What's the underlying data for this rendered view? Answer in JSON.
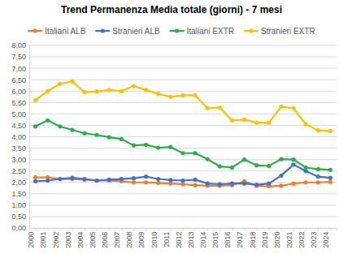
{
  "chart_data": {
    "type": "line",
    "title": "Trend Permanenza Media totale (giorni) - 7 mesi",
    "categories": [
      "2000",
      "2001",
      "2002",
      "2003",
      "2004",
      "2005",
      "2006",
      "2007",
      "2008",
      "2009",
      "2010",
      "2011",
      "2012",
      "2013",
      "2014",
      "2015",
      "2016",
      "2017",
      "2018",
      "2019",
      "2020",
      "2021",
      "2022",
      "2023",
      "2024"
    ],
    "series": [
      {
        "name": "Italiani ALB",
        "color": "#ED7D31",
        "values": [
          2.22,
          2.22,
          2.15,
          2.15,
          2.12,
          2.08,
          2.08,
          2.05,
          2.0,
          2.0,
          1.98,
          1.95,
          1.92,
          1.88,
          1.85,
          1.85,
          1.88,
          2.05,
          1.85,
          1.83,
          1.85,
          1.95,
          2.0,
          2.0,
          2.02
        ]
      },
      {
        "name": "Stranieri ALB",
        "color": "#4472C4",
        "values": [
          2.05,
          2.08,
          2.15,
          2.2,
          2.15,
          2.08,
          2.12,
          2.15,
          2.18,
          2.25,
          2.15,
          2.1,
          2.08,
          2.12,
          1.95,
          1.92,
          1.95,
          1.95,
          1.9,
          1.95,
          2.3,
          2.78,
          2.5,
          2.25,
          2.2
        ]
      },
      {
        "name": "Italiani EXTR",
        "color": "#2EAD4B",
        "values": [
          4.45,
          4.72,
          4.45,
          4.3,
          4.15,
          4.08,
          3.98,
          3.9,
          3.62,
          3.65,
          3.52,
          3.55,
          3.28,
          3.28,
          3.02,
          2.7,
          2.65,
          3.0,
          2.75,
          2.72,
          3.02,
          3.0,
          2.65,
          2.58,
          2.55
        ]
      },
      {
        "name": "Stranieri EXTR",
        "color": "#FFC000",
        "values": [
          5.6,
          6.0,
          6.32,
          6.42,
          5.95,
          5.98,
          6.05,
          6.0,
          6.22,
          6.05,
          5.88,
          5.75,
          5.82,
          5.82,
          5.25,
          5.28,
          4.72,
          4.75,
          4.62,
          4.62,
          5.32,
          5.25,
          4.55,
          4.28,
          4.25
        ]
      }
    ],
    "ylim": [
      0,
      8
    ],
    "yticks": [
      {
        "value": 0,
        "label": "0,00"
      },
      {
        "value": 0.5,
        "label": "0,50"
      },
      {
        "value": 1,
        "label": "1,00"
      },
      {
        "value": 1.5,
        "label": "1,50"
      },
      {
        "value": 2,
        "label": "2,00"
      },
      {
        "value": 2.5,
        "label": "2,50"
      },
      {
        "value": 3,
        "label": "3,00"
      },
      {
        "value": 3.5,
        "label": "3,50"
      },
      {
        "value": 4,
        "label": "4,00"
      },
      {
        "value": 4.5,
        "label": "4,50"
      },
      {
        "value": 5,
        "label": "5,00"
      },
      {
        "value": 5.5,
        "label": "5,50"
      },
      {
        "value": 6,
        "label": "6,00"
      },
      {
        "value": 6.5,
        "label": "6,50"
      },
      {
        "value": 7,
        "label": "7,00"
      },
      {
        "value": 7.5,
        "label": "7,50"
      },
      {
        "value": 8,
        "label": "8,00"
      }
    ],
    "grid": true,
    "legend": "top",
    "marker": "circle",
    "line_style": "solid"
  }
}
